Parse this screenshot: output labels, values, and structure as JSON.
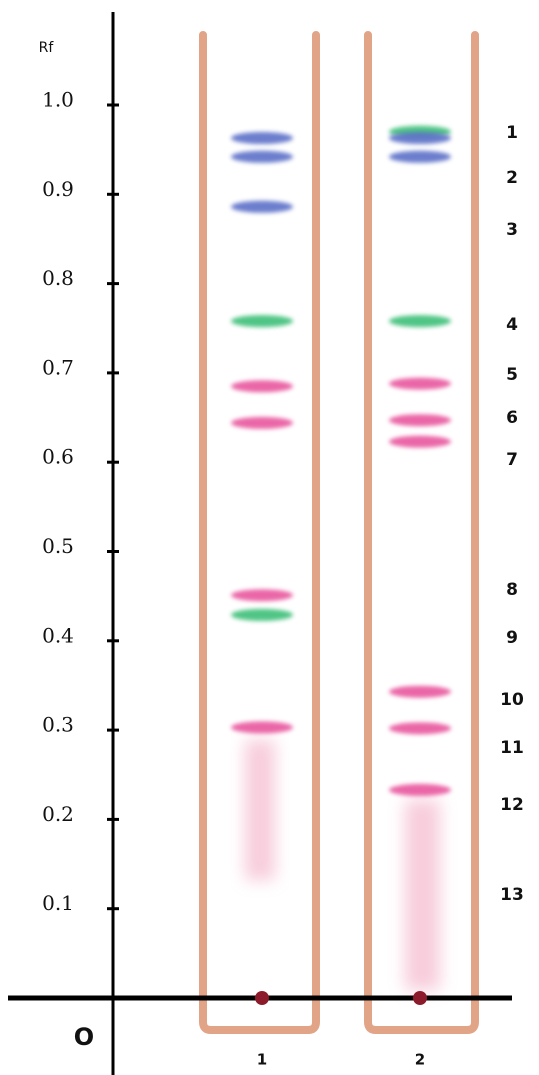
{
  "axis": {
    "label": "Rf",
    "origin_label": "O",
    "ylim": [
      0,
      1
    ],
    "yticks": [
      {
        "value": 1,
        "label": "1.0"
      },
      0.9,
      0.8,
      0.7,
      0.6,
      0.5,
      0.4,
      0.3,
      0.2,
      0.1
    ]
  },
  "lanes": [
    {
      "label": "1",
      "spots": [
        {
          "rf": 0.963,
          "color": "#5b6fc8"
        },
        {
          "rf": 0.942,
          "color": "#5b6fc8"
        },
        {
          "rf": 0.886,
          "color": "#5b6fc8"
        },
        {
          "rf": 0.758,
          "color": "#3dbf78"
        },
        {
          "rf": 0.685,
          "color": "#e8579e"
        },
        {
          "rf": 0.644,
          "color": "#e8579e"
        },
        {
          "rf": 0.451,
          "color": "#e8579e"
        },
        {
          "rf": 0.429,
          "color": "#3dbf78"
        },
        {
          "rf": 0.303,
          "color": "#e8579e"
        }
      ]
    },
    {
      "label": "2",
      "spots": [
        {
          "rf": 0.97,
          "color": "#3dbf78"
        },
        {
          "rf": 0.963,
          "color": "#5b6fc8"
        },
        {
          "rf": 0.942,
          "color": "#5b6fc8"
        },
        {
          "rf": 0.758,
          "color": "#3dbf78"
        },
        {
          "rf": 0.688,
          "color": "#e8579e"
        },
        {
          "rf": 0.647,
          "color": "#e8579e"
        },
        {
          "rf": 0.623,
          "color": "#e8579e"
        },
        {
          "rf": 0.343,
          "color": "#e8579e"
        },
        {
          "rf": 0.302,
          "color": "#e8579e"
        },
        {
          "rf": 0.233,
          "color": "#e8579e"
        }
      ]
    }
  ],
  "spot_labels": [
    "1",
    "2",
    "3",
    "4",
    "5",
    "6",
    "7",
    "8",
    "9",
    "10",
    "11",
    "12",
    "13"
  ]
}
